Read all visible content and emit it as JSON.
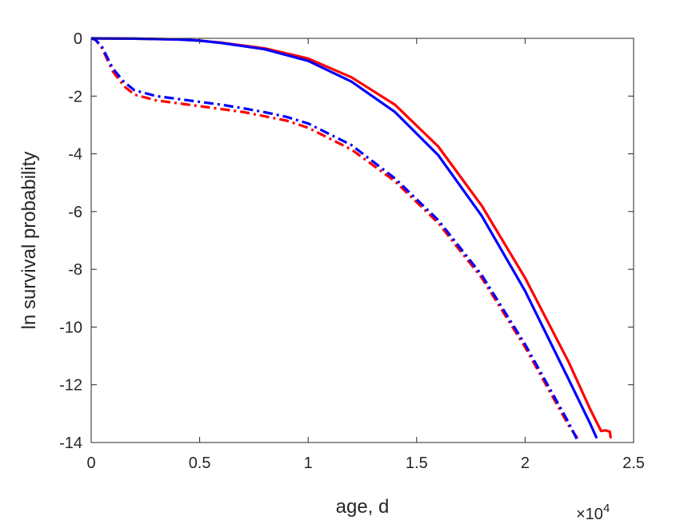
{
  "chart_data": {
    "type": "line",
    "title": "",
    "xlabel": "age, d",
    "ylabel": "ln survival probability",
    "x_exponent_base": "×10",
    "x_exponent_power": "4",
    "xlim": [
      0,
      2.5
    ],
    "ylim": [
      -14,
      0
    ],
    "xticks": [
      0,
      0.5,
      1,
      1.5,
      2,
      2.5
    ],
    "xtick_labels": [
      "0",
      "0.5",
      "1",
      "1.5",
      "2",
      "2.5"
    ],
    "yticks": [
      0,
      -2,
      -4,
      -6,
      -8,
      -10,
      -12,
      -14
    ],
    "ytick_labels": [
      "0",
      "-2",
      "-4",
      "-6",
      "-8",
      "-10",
      "-12",
      "-14"
    ],
    "grid": false,
    "legend": "none",
    "series": [
      {
        "color": "#ff0000",
        "style": "solid",
        "x": [
          0,
          0.2,
          0.4,
          0.5,
          0.6,
          0.8,
          1.0,
          1.2,
          1.4,
          1.6,
          1.8,
          2.0,
          2.2,
          2.3,
          2.35,
          2.37,
          2.39,
          2.395
        ],
        "y": [
          0,
          -0.01,
          -0.04,
          -0.08,
          -0.15,
          -0.35,
          -0.7,
          -1.35,
          -2.3,
          -3.75,
          -5.8,
          -8.3,
          -11.2,
          -12.85,
          -13.6,
          -13.58,
          -13.62,
          -13.85
        ]
      },
      {
        "color": "#0000ff",
        "style": "solid",
        "x": [
          0,
          0.2,
          0.4,
          0.5,
          0.6,
          0.8,
          1.0,
          1.2,
          1.4,
          1.6,
          1.8,
          2.0,
          2.2,
          2.3,
          2.33
        ],
        "y": [
          0,
          -0.01,
          -0.04,
          -0.08,
          -0.16,
          -0.38,
          -0.78,
          -1.5,
          -2.55,
          -4.05,
          -6.15,
          -8.75,
          -11.8,
          -13.35,
          -13.85
        ]
      },
      {
        "color": "#ff0000",
        "style": "dashdot",
        "x": [
          0,
          0.02,
          0.05,
          0.1,
          0.15,
          0.2,
          0.3,
          0.4,
          0.5,
          0.6,
          0.7,
          0.8,
          0.9,
          1.0,
          1.2,
          1.4,
          1.6,
          1.8,
          2.0,
          2.1,
          2.2,
          2.25
        ],
        "y": [
          0,
          -0.05,
          -0.35,
          -1.15,
          -1.65,
          -1.95,
          -2.15,
          -2.25,
          -2.35,
          -2.45,
          -2.55,
          -2.7,
          -2.85,
          -3.1,
          -3.85,
          -4.95,
          -6.4,
          -8.3,
          -10.7,
          -12.05,
          -13.4,
          -13.95
        ]
      },
      {
        "color": "#0000ff",
        "style": "dashdot",
        "x": [
          0,
          0.02,
          0.05,
          0.1,
          0.15,
          0.2,
          0.3,
          0.4,
          0.5,
          0.6,
          0.7,
          0.8,
          0.9,
          1.0,
          1.2,
          1.4,
          1.6,
          1.8,
          2.0,
          2.1,
          2.2,
          2.24
        ],
        "y": [
          0,
          -0.05,
          -0.3,
          -1.05,
          -1.5,
          -1.8,
          -2.0,
          -2.1,
          -2.2,
          -2.3,
          -2.42,
          -2.56,
          -2.72,
          -2.95,
          -3.7,
          -4.85,
          -6.3,
          -8.2,
          -10.6,
          -11.95,
          -13.3,
          -13.9
        ]
      }
    ]
  }
}
